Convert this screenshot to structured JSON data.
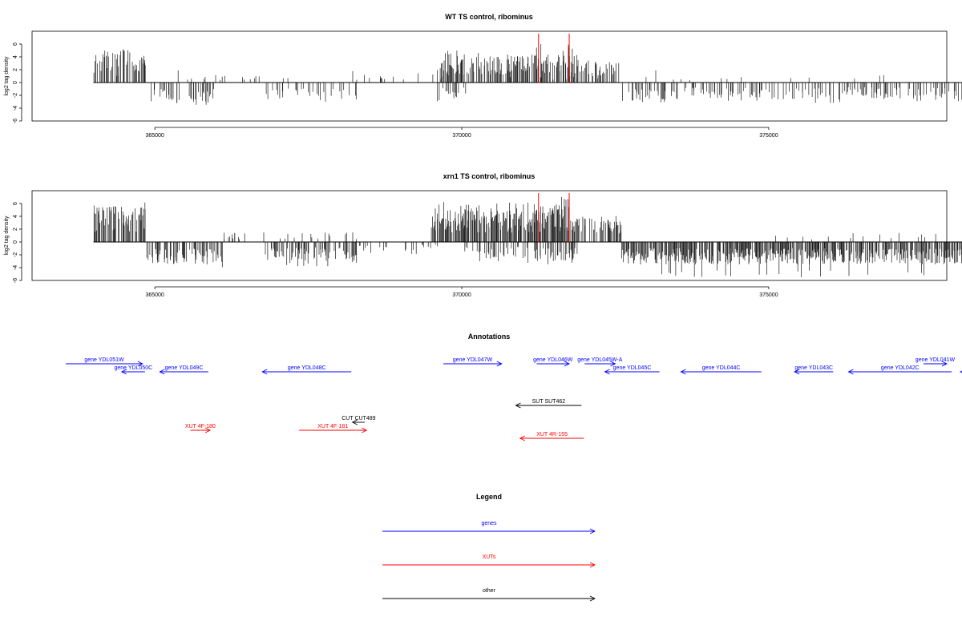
{
  "chart_data": [
    {
      "type": "bar",
      "title": "WT TS control, ribominus",
      "xlabel": "",
      "ylabel": "log2 tag density",
      "xlim": [
        363000,
        377900
      ],
      "ylim": [
        -6,
        8
      ],
      "yticks": [
        -6,
        -4,
        -2,
        0,
        2,
        4,
        6
      ],
      "xticks": [
        365000,
        370000,
        375000
      ],
      "xtick_labels": [
        "365000",
        "370000",
        "375000"
      ],
      "highlight_positions": [
        371250,
        371750
      ],
      "highlight_color": "#ff0000",
      "density_profile": "wt",
      "range": [
        364000,
        378900
      ]
    },
    {
      "type": "bar",
      "title": "xrn1 TS control, ribominus",
      "xlabel": "",
      "ylabel": "log2 tag density",
      "xlim": [
        363000,
        377900
      ],
      "ylim": [
        -6,
        8
      ],
      "yticks": [
        -6,
        -4,
        -2,
        0,
        2,
        4,
        6
      ],
      "xticks": [
        365000,
        370000,
        375000
      ],
      "xtick_labels": [
        "365000",
        "370000",
        "375000"
      ],
      "highlight_positions": [
        371250,
        371750
      ],
      "highlight_color": "#ff0000",
      "density_profile": "xrn1",
      "range": [
        364000,
        378900
      ]
    }
  ],
  "annotations": {
    "title": "Annotations",
    "xlim": [
      363000,
      377900
    ],
    "items": [
      {
        "label": "gene YDL051W",
        "start": 363550,
        "end": 364800,
        "strand": "+",
        "color": "#0000ff",
        "track": 0
      },
      {
        "label": "gene YDL050C",
        "start": 364460,
        "end": 364840,
        "strand": "-",
        "color": "#0000ff",
        "track": 1
      },
      {
        "label": "gene YDL049C",
        "start": 365080,
        "end": 365870,
        "strand": "-",
        "color": "#0000ff",
        "track": 1
      },
      {
        "label": "gene YDL048C",
        "start": 366750,
        "end": 368200,
        "strand": "-",
        "color": "#0000ff",
        "track": 1
      },
      {
        "label": "gene YDL047W",
        "start": 369700,
        "end": 370650,
        "strand": "+",
        "color": "#0000ff",
        "track": 0
      },
      {
        "label": "gene YDL046W",
        "start": 371220,
        "end": 371750,
        "strand": "+",
        "color": "#0000ff",
        "track": 0
      },
      {
        "label": "gene YDL045W-A",
        "start": 372000,
        "end": 372500,
        "strand": "+",
        "color": "#0000ff",
        "track": 0
      },
      {
        "label": "gene YDL045C",
        "start": 372330,
        "end": 373220,
        "strand": "-",
        "color": "#0000ff",
        "track": 1
      },
      {
        "label": "gene YDL044C",
        "start": 373570,
        "end": 374880,
        "strand": "-",
        "color": "#0000ff",
        "track": 1
      },
      {
        "label": "gene YDL043C",
        "start": 375420,
        "end": 376050,
        "strand": "-",
        "color": "#0000ff",
        "track": 1
      },
      {
        "label": "gene YDL042C",
        "start": 376300,
        "end": 377980,
        "strand": "-",
        "color": "#0000ff",
        "track": 1
      },
      {
        "label": "gene YDL041W",
        "start": 377520,
        "end": 377900,
        "strand": "+",
        "color": "#0000ff",
        "track": 0
      },
      {
        "label": "",
        "start": 378350,
        "end": 379100,
        "strand": "-",
        "color": "#0000ff",
        "track": 1
      },
      {
        "label": "SUT SUT462",
        "start": 370880,
        "end": 371950,
        "strand": "-",
        "color": "#000000",
        "track": 2
      },
      {
        "label": "CUT CUT489",
        "start": 368220,
        "end": 368420,
        "strand": "-",
        "color": "#000000",
        "track": 3
      },
      {
        "label": "XUT 4F-180",
        "start": 365580,
        "end": 365900,
        "strand": "+",
        "color": "#ff0000",
        "track": 4
      },
      {
        "label": "XUT 4F-181",
        "start": 367350,
        "end": 368450,
        "strand": "+",
        "color": "#ff0000",
        "track": 4
      },
      {
        "label": "XUT 4R-155",
        "start": 370950,
        "end": 371990,
        "strand": "-",
        "color": "#ff0000",
        "track": 5
      }
    ]
  },
  "legend": {
    "title": "Legend",
    "items": [
      {
        "label": "genes",
        "color": "#0000ff"
      },
      {
        "label": "XUTs",
        "color": "#ff0000"
      },
      {
        "label": "other",
        "color": "#000000"
      }
    ]
  }
}
